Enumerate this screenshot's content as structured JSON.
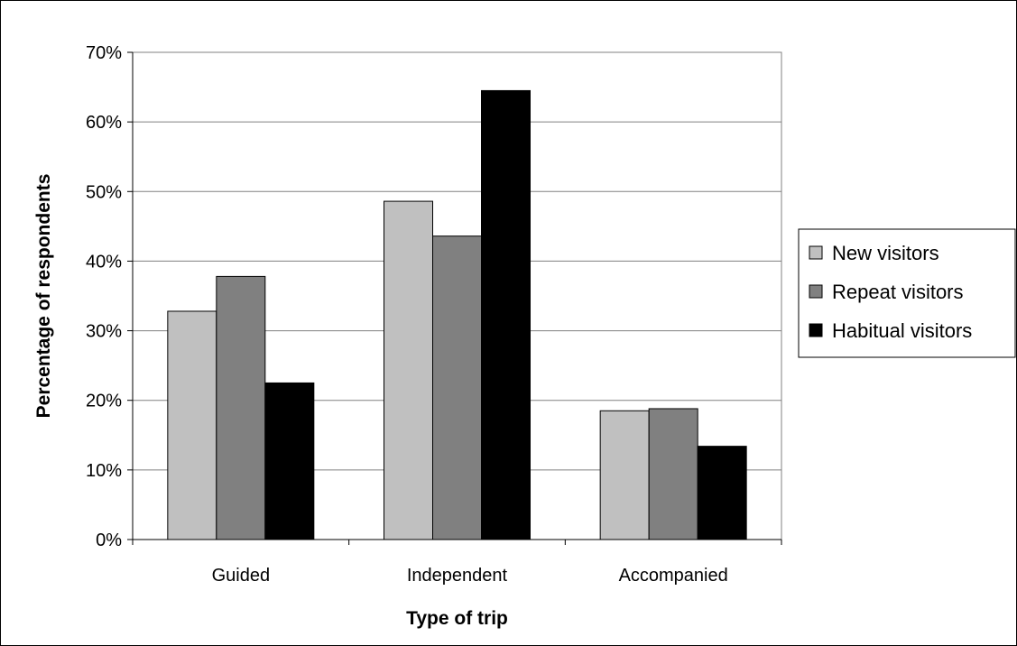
{
  "chart_data": {
    "type": "bar",
    "title": "",
    "xlabel": "Type of trip",
    "ylabel": "Percentage of respondents",
    "categories": [
      "Guided",
      "Independent",
      "Accompanied"
    ],
    "series": [
      {
        "name": "New visitors",
        "values": [
          32.8,
          48.6,
          18.5
        ],
        "color": "#c0c0c0"
      },
      {
        "name": "Repeat visitors",
        "values": [
          37.8,
          43.6,
          18.8
        ],
        "color": "#808080"
      },
      {
        "name": "Habitual visitors",
        "values": [
          22.5,
          64.5,
          13.4
        ],
        "color": "#000000"
      }
    ],
    "ylim": [
      0,
      70
    ],
    "yticks": [
      "0%",
      "10%",
      "20%",
      "30%",
      "40%",
      "50%",
      "60%",
      "70%"
    ],
    "grid": true,
    "legend_position": "right"
  }
}
